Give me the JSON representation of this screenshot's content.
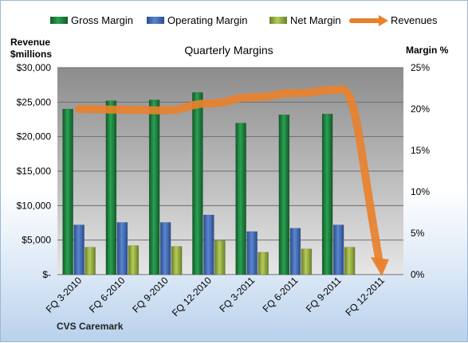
{
  "chart_data": {
    "type": "bar",
    "title": "Quarterly Margins",
    "categories": [
      "FQ 3-2010",
      "FQ 6-2010",
      "FQ 9-2010",
      "FQ 12-2010",
      "FQ 3-2011",
      "FQ 6-2011",
      "FQ 9-2011",
      "FQ 12-2011"
    ],
    "series": [
      {
        "name": "Gross Margin",
        "axis": "right",
        "kind": "bar",
        "color": "#1b7a3a",
        "values": [
          20.0,
          21.0,
          21.1,
          22.0,
          18.3,
          19.3,
          19.4,
          null
        ]
      },
      {
        "name": "Operating Margin",
        "axis": "right",
        "kind": "bar",
        "color": "#3b64ad",
        "values": [
          6.0,
          6.3,
          6.3,
          7.2,
          5.2,
          5.6,
          6.0,
          null
        ]
      },
      {
        "name": "Net Margin",
        "axis": "right",
        "kind": "bar",
        "color": "#8fa83a",
        "values": [
          3.3,
          3.5,
          3.4,
          4.1,
          2.7,
          3.1,
          3.3,
          null
        ]
      },
      {
        "name": "Revenues",
        "axis": "left",
        "kind": "line",
        "color": "#e8812c",
        "values": [
          24000,
          23900,
          23800,
          24800,
          25700,
          26300,
          26800,
          0
        ]
      }
    ],
    "y_left": {
      "label_line1": "Revenue",
      "label_line2": "$millions",
      "ylim": [
        0,
        30000
      ],
      "ticks": [
        "$-",
        "$5,000",
        "$10,000",
        "$15,000",
        "$20,000",
        "$25,000",
        "$30,000"
      ]
    },
    "y_right": {
      "label": "Margin %",
      "ylim": [
        0,
        25
      ],
      "ticks": [
        "0%",
        "5%",
        "10%",
        "15%",
        "20%",
        "25%"
      ]
    },
    "grid": true,
    "legend": "top",
    "footnote": "CVS Caremark"
  }
}
